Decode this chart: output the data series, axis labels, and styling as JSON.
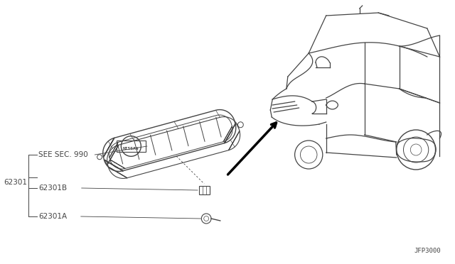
{
  "bg_color": "#ffffff",
  "line_color": "#444444",
  "fig_id": "JFP3000",
  "labels": {
    "see_sec": "SEE SEC. 990",
    "part_main": "62301",
    "part_b": "62301B",
    "part_a": "62301A"
  }
}
